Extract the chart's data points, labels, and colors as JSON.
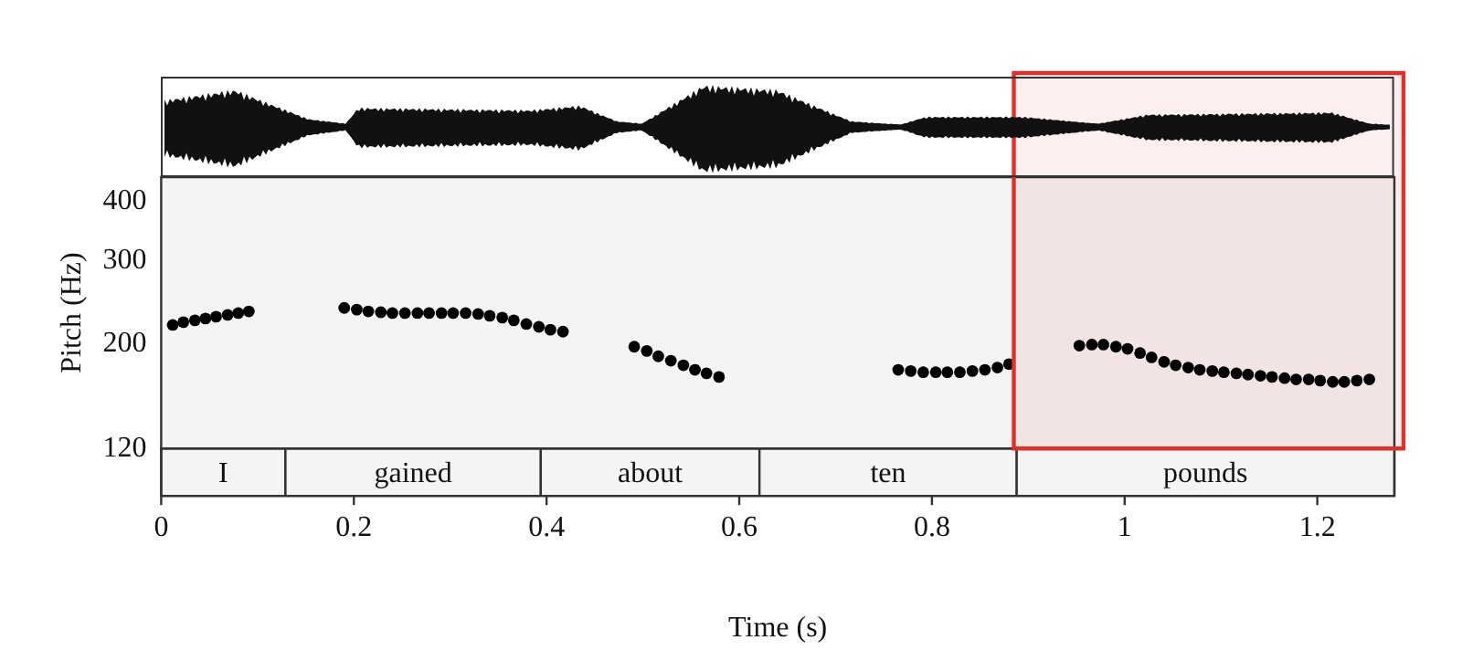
{
  "chart_data": {
    "type": "scatter",
    "xlabel": "Time (s)",
    "ylabel": "Pitch (Hz)",
    "x": [
      0.012,
      0.023,
      0.035,
      0.046,
      0.057,
      0.069,
      0.08,
      0.091,
      0.19,
      0.203,
      0.215,
      0.228,
      0.24,
      0.253,
      0.266,
      0.278,
      0.291,
      0.303,
      0.316,
      0.329,
      0.341,
      0.354,
      0.366,
      0.379,
      0.392,
      0.404,
      0.417,
      0.491,
      0.504,
      0.516,
      0.529,
      0.542,
      0.554,
      0.566,
      0.579,
      0.765,
      0.778,
      0.791,
      0.804,
      0.816,
      0.829,
      0.842,
      0.855,
      0.868,
      0.88,
      0.953,
      0.966,
      0.978,
      0.991,
      1.003,
      1.016,
      1.028,
      1.041,
      1.053,
      1.066,
      1.078,
      1.091,
      1.103,
      1.116,
      1.128,
      1.141,
      1.153,
      1.166,
      1.178,
      1.191,
      1.203,
      1.216,
      1.228,
      1.241,
      1.254
    ],
    "series": [
      {
        "color": "#000000",
        "values": [
          219,
          222,
          224,
          226,
          228,
          230,
          232,
          234,
          238,
          236,
          234,
          233,
          232,
          232,
          232,
          232,
          232,
          232,
          232,
          231,
          229,
          227,
          224,
          220,
          217,
          214,
          212,
          197,
          193,
          188,
          184,
          180,
          176,
          173,
          170,
          176,
          175,
          174,
          174,
          174,
          174,
          175,
          176,
          178,
          181,
          198,
          199,
          199,
          197,
          195,
          191,
          187,
          183,
          180,
          178,
          176,
          175,
          174,
          173,
          172,
          171,
          170,
          169,
          168,
          168,
          167,
          166,
          166,
          167,
          168
        ]
      }
    ],
    "xlim": [
      0,
      1.28
    ],
    "xticks": [
      0,
      0.2,
      0.4,
      0.6,
      0.8,
      1,
      1.2
    ],
    "ylim": [
      120,
      450
    ],
    "yticks": [
      120,
      200,
      300,
      400
    ],
    "log": "y",
    "grid": false,
    "legend": false,
    "marker": "circle",
    "bands": [
      {
        "axis": "x",
        "from": 0,
        "to": 0.129,
        "label": "I"
      },
      {
        "axis": "x",
        "from": 0.129,
        "to": 0.394,
        "label": "gained"
      },
      {
        "axis": "x",
        "from": 0.394,
        "to": 0.621,
        "label": "about"
      },
      {
        "axis": "x",
        "from": 0.621,
        "to": 0.888,
        "label": "ten"
      },
      {
        "axis": "x",
        "from": 0.888,
        "to": 1.28,
        "label": "pounds"
      },
      {
        "axis": "x",
        "from": 0.885,
        "to": 1.28
      }
    ]
  }
}
